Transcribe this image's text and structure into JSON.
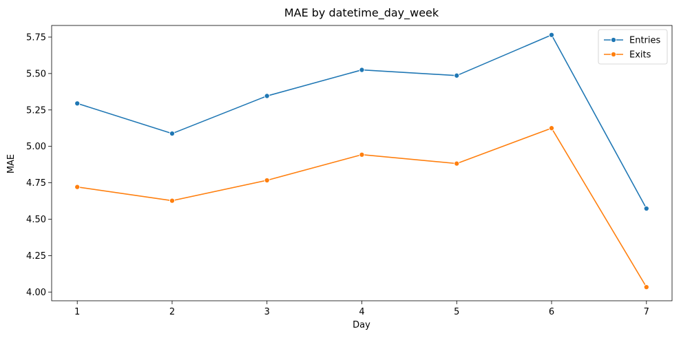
{
  "chart_data": {
    "type": "line",
    "title": "MAE by datetime_day_week",
    "xlabel": "Day",
    "ylabel": "MAE",
    "x": [
      1,
      2,
      3,
      4,
      5,
      6,
      7
    ],
    "x_ticks": [
      "1",
      "2",
      "3",
      "4",
      "5",
      "6",
      "7"
    ],
    "xlim": [
      0.73,
      7.27
    ],
    "ylim": [
      3.94,
      5.83
    ],
    "y_ticks": [
      "4.00",
      "4.25",
      "4.50",
      "4.75",
      "5.00",
      "5.25",
      "5.50",
      "5.75"
    ],
    "grid": false,
    "legend_position": "top-right",
    "series": [
      {
        "name": "Entries",
        "color": "#1f77b4",
        "marker": "circle",
        "values": [
          5.295,
          5.088,
          5.346,
          5.525,
          5.486,
          5.765,
          4.573
        ]
      },
      {
        "name": "Exits",
        "color": "#ff7f0e",
        "marker": "circle",
        "values": [
          4.721,
          4.627,
          4.767,
          4.943,
          4.882,
          5.125,
          4.034
        ]
      }
    ]
  }
}
